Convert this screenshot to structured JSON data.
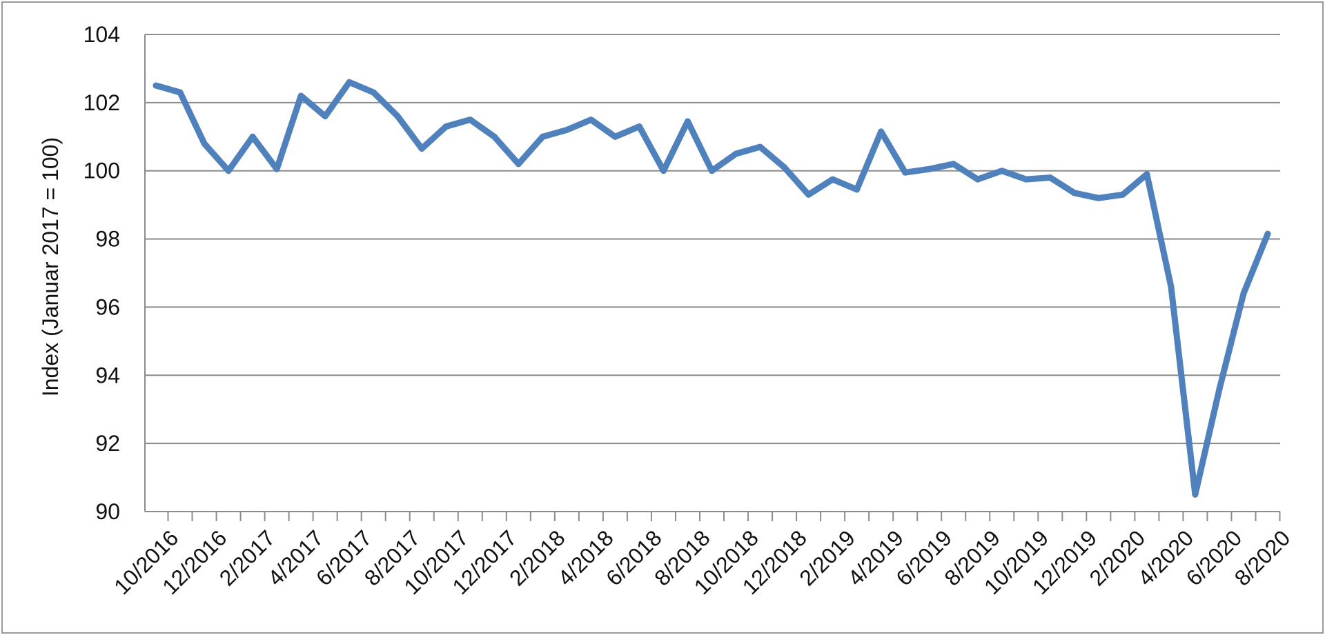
{
  "chart_data": {
    "type": "line",
    "title": "",
    "xlabel": "",
    "ylabel": "Index (Januar 2017 = 100)",
    "ylim": [
      90,
      104
    ],
    "yticks": [
      90,
      92,
      94,
      96,
      98,
      100,
      102,
      104
    ],
    "grid": true,
    "legend": "none",
    "x_tick_labels": [
      "10/2016",
      "12/2016",
      "2/2017",
      "4/2017",
      "6/2017",
      "8/2017",
      "10/2017",
      "12/2017",
      "2/2018",
      "4/2018",
      "6/2018",
      "8/2018",
      "10/2018",
      "12/2018",
      "2/2019",
      "4/2019",
      "6/2019",
      "8/2019",
      "10/2019",
      "12/2019",
      "2/2020",
      "4/2020",
      "6/2020",
      "8/2020"
    ],
    "x": [
      "10/2016",
      "11/2016",
      "12/2016",
      "1/2017",
      "2/2017",
      "3/2017",
      "4/2017",
      "5/2017",
      "6/2017",
      "7/2017",
      "8/2017",
      "9/2017",
      "10/2017",
      "11/2017",
      "12/2017",
      "1/2018",
      "2/2018",
      "3/2018",
      "4/2018",
      "5/2018",
      "6/2018",
      "7/2018",
      "8/2018",
      "9/2018",
      "10/2018",
      "11/2018",
      "12/2018",
      "1/2019",
      "2/2019",
      "3/2019",
      "4/2019",
      "5/2019",
      "6/2019",
      "7/2019",
      "8/2019",
      "9/2019",
      "10/2019",
      "11/2019",
      "12/2019",
      "1/2020",
      "2/2020",
      "3/2020",
      "4/2020",
      "5/2020",
      "6/2020",
      "7/2020",
      "8/2020"
    ],
    "series": [
      {
        "color": "#4f81bd",
        "values": [
          102.5,
          102.3,
          100.8,
          100.0,
          101.0,
          100.05,
          102.2,
          101.6,
          102.6,
          102.3,
          101.6,
          100.65,
          101.3,
          101.5,
          101.0,
          100.2,
          101.0,
          101.2,
          101.5,
          101.0,
          101.3,
          100.0,
          101.45,
          100.0,
          100.5,
          100.7,
          100.1,
          99.3,
          99.75,
          99.45,
          101.15,
          99.95,
          100.05,
          100.2,
          99.75,
          100.0,
          99.75,
          99.8,
          99.35,
          99.2,
          99.3,
          99.9,
          96.6,
          90.5,
          93.6,
          96.4,
          98.15
        ]
      }
    ]
  }
}
